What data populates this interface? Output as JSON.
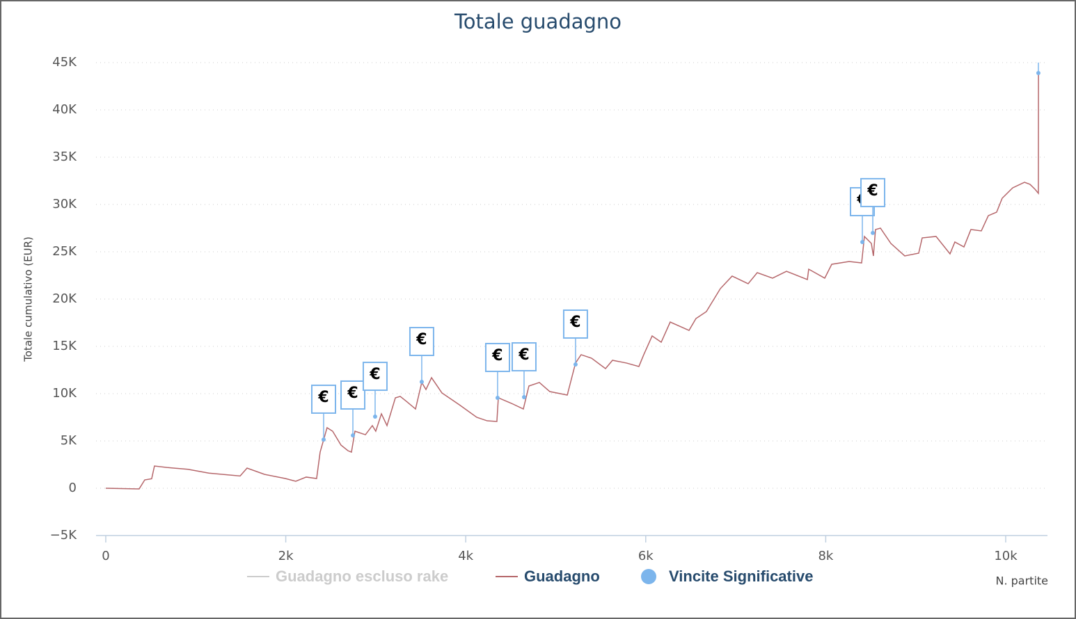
{
  "chart_data": {
    "type": "line",
    "title": "Totale guadagno",
    "y_label": "Totale cumulativo (EUR)",
    "x_label": "N. partite",
    "xlim": [
      -108,
      10464
    ],
    "ylim": [
      -5000,
      45000
    ],
    "xticks": [
      0,
      {
        "value": 2000,
        "label": "2k"
      },
      {
        "value": 4000,
        "label": "4k"
      },
      {
        "value": 6000,
        "label": "6k"
      },
      {
        "value": 8000,
        "label": "8k"
      },
      {
        "value": 10000,
        "label": "10k"
      }
    ],
    "yticks": [
      {
        "value": -5000,
        "label": "−5K"
      },
      0,
      {
        "value": 5000,
        "label": "5K"
      },
      {
        "value": 10000,
        "label": "10K"
      },
      {
        "value": 15000,
        "label": "15K"
      },
      {
        "value": 20000,
        "label": "20K"
      },
      {
        "value": 25000,
        "label": "25K"
      },
      {
        "value": 30000,
        "label": "30K"
      },
      {
        "value": 35000,
        "label": "35K"
      },
      {
        "value": 40000,
        "label": "40K"
      },
      {
        "value": 45000,
        "label": "45K"
      }
    ],
    "grid": true,
    "flag_label": "€",
    "series": [
      {
        "name": "Guadagno escluso rake",
        "color": "#cccccc",
        "visible": false,
        "x": [],
        "values": []
      },
      {
        "name": "Guadagno",
        "color": "#b5666a",
        "visible": true,
        "x": [
          0,
          371,
          433,
          510,
          541,
          680,
          913,
          1145,
          1493,
          1570,
          1763,
          1995,
          2111,
          2227,
          2343,
          2382,
          2459,
          2521,
          2614,
          2691,
          2730,
          2769,
          2885,
          2962,
          3000,
          3063,
          3125,
          3218,
          3272,
          3349,
          3442,
          3511,
          3558,
          3620,
          3736,
          3929,
          4122,
          4238,
          4346,
          4362,
          4509,
          4640,
          4702,
          4818,
          4934,
          5128,
          5220,
          5282,
          5398,
          5553,
          5631,
          5785,
          5924,
          5978,
          6071,
          6172,
          6272,
          6481,
          6558,
          6674,
          6829,
          6960,
          7138,
          7239,
          7409,
          7564,
          7796,
          7811,
          7989,
          8067,
          8260,
          8399,
          8430,
          8507,
          8530,
          8553,
          8608,
          8724,
          8878,
          9033,
          9072,
          9226,
          9381,
          9435,
          9536,
          9613,
          9729,
          9807,
          9899,
          9961,
          10077,
          10209,
          10270,
          10325,
          10363,
          10364
        ],
        "values": [
          0,
          -70,
          880,
          1000,
          2350,
          2200,
          2000,
          1600,
          1300,
          2130,
          1470,
          1030,
          740,
          1180,
          1030,
          3820,
          6400,
          6030,
          4560,
          3970,
          3820,
          6030,
          5660,
          6620,
          6030,
          7870,
          6620,
          9560,
          9710,
          9120,
          8380,
          11180,
          10440,
          11690,
          10070,
          8820,
          7500,
          7130,
          7060,
          9560,
          8970,
          8380,
          10810,
          11180,
          10220,
          9850,
          13240,
          14120,
          13750,
          12650,
          13530,
          13240,
          12870,
          14120,
          16100,
          15440,
          17570,
          16690,
          17940,
          18680,
          21100,
          22430,
          21620,
          22790,
          22210,
          22940,
          22060,
          23160,
          22210,
          23680,
          23970,
          23820,
          26620,
          25880,
          24560,
          27350,
          27500,
          25880,
          24560,
          24850,
          26470,
          26620,
          24780,
          26030,
          25510,
          27350,
          27210,
          28820,
          29190,
          30660,
          31760,
          32350,
          32130,
          31620,
          31180,
          43900
        ]
      },
      {
        "name": "Vincite Significative",
        "color": "#7cb5ec",
        "visible": true,
        "marker": "point",
        "x": [
          2421,
          2746,
          2993,
          3511,
          4354,
          4648,
          5220,
          8407,
          8523,
          10363
        ],
        "values": [
          5150,
          5590,
          7570,
          11250,
          9560,
          9630,
          13090,
          26030,
          26990,
          43900
        ]
      }
    ]
  }
}
